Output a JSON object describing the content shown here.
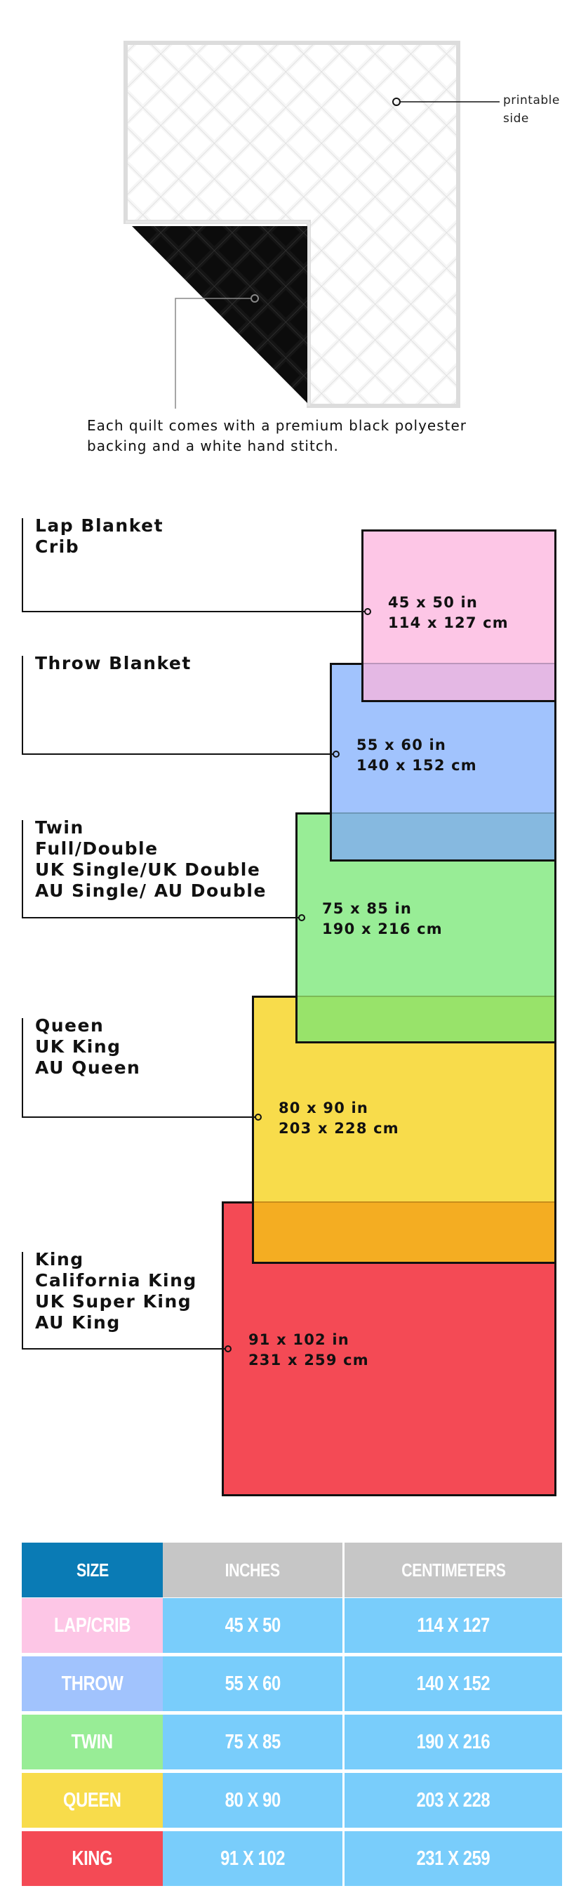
{
  "quilt": {
    "printable_label": "printable\nside",
    "printable_line1": "printable",
    "printable_line2": "side",
    "caption_line1": "Each quilt comes with a premium black polyester",
    "caption_line2": "backing and a white hand stitch.",
    "front_color": "#f4f4f4",
    "backing_color": "#111111"
  },
  "sizes": [
    {
      "names": [
        "Lap Blanket",
        "Crib"
      ],
      "inches": "45 x 50 in",
      "cm": "114 x 127 cm",
      "color": "#fdc6e6"
    },
    {
      "names": [
        "Throw Blanket"
      ],
      "inches": "55 x 60 in",
      "cm": "140 x 152 cm",
      "color": "#a1c3fd"
    },
    {
      "names": [
        "Twin",
        "Full/Double",
        "UK Single/UK Double",
        "AU Single/ AU Double"
      ],
      "inches": "75 x 85 in",
      "cm": "190 x 216 cm",
      "color": "#98ed96"
    },
    {
      "names": [
        "Queen",
        "UK King",
        "AU Queen"
      ],
      "inches": "80 x 90 in",
      "cm": "203 x 228 cm",
      "color": "#f8dc4b"
    },
    {
      "names": [
        "King",
        "California King",
        "UK Super King",
        "AU King"
      ],
      "inches": "91 x 102 in",
      "cm": "231 x 259 cm",
      "color": "#f44a55"
    }
  ],
  "table": {
    "headers": [
      "SIZE",
      "INCHES",
      "CENTIMETERS"
    ],
    "header_colors": {
      "size": "#0a7bb5",
      "other": "#c6c6c6"
    },
    "value_color": "#79cdfb",
    "rows": [
      {
        "size": "LAP/CRIB",
        "inches": "45 X 50",
        "cm": "114 X 127",
        "color": "#fdc6e6"
      },
      {
        "size": "THROW",
        "inches": "55 X 60",
        "cm": "140 X 152",
        "color": "#a1c3fd"
      },
      {
        "size": "TWIN",
        "inches": "75 X 85",
        "cm": "190 X 216",
        "color": "#98ed96"
      },
      {
        "size": "QUEEN",
        "inches": "80 X 90",
        "cm": "203 X 228",
        "color": "#f8dc4b"
      },
      {
        "size": "KING",
        "inches": "91 X 102",
        "cm": "231 X 259",
        "color": "#f44a55"
      }
    ]
  }
}
